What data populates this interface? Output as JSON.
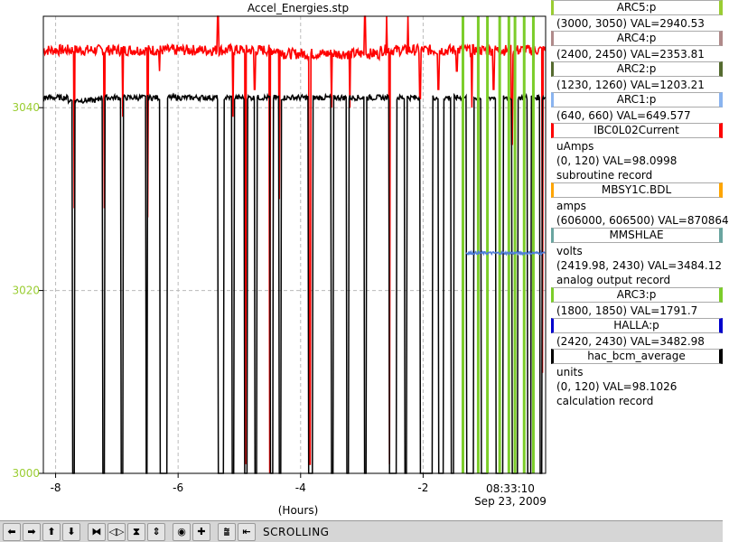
{
  "window": {
    "title": "Accel_Energies.stp"
  },
  "chart_data": {
    "type": "line",
    "xlabel": "(Hours)",
    "xlim": [
      -8.2,
      0
    ],
    "ylim": [
      3000,
      3050
    ],
    "x_ticks": [
      -8,
      -6,
      -4,
      -2
    ],
    "x_tick_labels": [
      "-8",
      "-6",
      "-4",
      "-2"
    ],
    "y_ticks": [
      3000,
      3020,
      3040
    ],
    "y_tick_labels": [
      "3000",
      "3020",
      "3040"
    ],
    "y_tick_color": "#9acd32",
    "grid": true,
    "end_time": "08:33:10",
    "end_date": "Sep 23, 2009",
    "series": [
      {
        "color": "#ff0000",
        "baseline": 3046.3,
        "noise": 0.6,
        "dips": [
          {
            "x": -7.7,
            "y": 3029
          },
          {
            "x": -7.2,
            "y": 3029
          },
          {
            "x": -6.9,
            "y": 3039
          },
          {
            "x": -6.5,
            "y": 3028
          },
          {
            "x": -6.3,
            "y": 3044
          },
          {
            "x": -6.05,
            "y": 3046
          },
          {
            "x": -5.35,
            "y": 3000
          },
          {
            "x": -5.1,
            "y": 3039
          },
          {
            "x": -4.9,
            "y": 3001
          },
          {
            "x": -4.75,
            "y": 3042
          },
          {
            "x": -4.5,
            "y": 3000
          },
          {
            "x": -4.35,
            "y": 3030
          },
          {
            "x": -3.85,
            "y": 3001
          },
          {
            "x": -3.5,
            "y": 3040
          },
          {
            "x": -3.2,
            "y": 3040
          },
          {
            "x": -2.95,
            "y": 3043
          },
          {
            "x": -2.55,
            "y": 3001
          },
          {
            "x": -2.25,
            "y": 3044
          },
          {
            "x": -2.05,
            "y": 3041
          },
          {
            "x": -1.75,
            "y": 3042
          },
          {
            "x": -1.45,
            "y": 3044
          },
          {
            "x": -1.2,
            "y": 3040
          },
          {
            "x": -0.85,
            "y": 3042
          },
          {
            "x": -0.55,
            "y": 3036
          },
          {
            "x": -0.2,
            "y": 3044
          },
          {
            "x": -0.05,
            "y": 3011
          }
        ],
        "spikes": [
          -5.35,
          -2.95,
          -2.6,
          -2.25
        ]
      },
      {
        "color": "#000000",
        "baseline": 3041.1,
        "noise": 0.3,
        "drops": [
          {
            "x": -7.73,
            "w": 0.04
          },
          {
            "x": -7.23,
            "w": 0.03
          },
          {
            "x": -6.93,
            "w": 0.03
          },
          {
            "x": -6.53,
            "w": 0.03
          },
          {
            "x": -6.3,
            "w": 0.12
          },
          {
            "x": -5.35,
            "w": 0.1
          },
          {
            "x": -5.12,
            "w": 0.03
          },
          {
            "x": -4.92,
            "w": 0.05
          },
          {
            "x": -4.75,
            "w": 0.03
          },
          {
            "x": -4.5,
            "w": 0.05
          },
          {
            "x": -4.35,
            "w": 0.03
          },
          {
            "x": -3.87,
            "w": 0.07
          },
          {
            "x": -3.5,
            "w": 0.03
          },
          {
            "x": -3.25,
            "w": 0.03
          },
          {
            "x": -2.96,
            "w": 0.03
          },
          {
            "x": -2.55,
            "w": 0.12
          },
          {
            "x": -2.3,
            "w": 0.03
          },
          {
            "x": -2.05,
            "w": 0.2
          },
          {
            "x": -1.75,
            "w": 0.08
          },
          {
            "x": -1.55,
            "w": 0.05
          },
          {
            "x": -1.3,
            "w": 0.12
          },
          {
            "x": -1.05,
            "w": 0.1
          },
          {
            "x": -0.82,
            "w": 0.12
          },
          {
            "x": -0.55,
            "w": 0.1
          },
          {
            "x": -0.3,
            "w": 0.06
          },
          {
            "x": -0.1,
            "w": 0.04
          }
        ]
      },
      {
        "color": "#7ccd2a",
        "vertical_lines": [
          -1.35,
          -1.1,
          -0.95,
          -0.75,
          -0.6,
          -0.5,
          -0.35,
          -0.2
        ]
      },
      {
        "color": "#4f7fd8",
        "x_start": -1.3,
        "x_end": 0,
        "baseline": 3024.1,
        "noise": 0.15
      }
    ]
  },
  "legend": {
    "entries": [
      {
        "name": "ARC5:p",
        "color": "#9acd32",
        "lines": [
          "(3000, 3050) VAL=2940.53"
        ]
      },
      {
        "name": "ARC4:p",
        "color": "#b08a8a",
        "lines": [
          "(2400, 2450) VAL=2353.81"
        ]
      },
      {
        "name": "ARC2:p",
        "color": "#556b2f",
        "lines": [
          "(1230, 1260) VAL=1203.21"
        ]
      },
      {
        "name": "ARC1:p",
        "color": "#8ab4f0",
        "lines": [
          "(640, 660) VAL=649.577"
        ]
      },
      {
        "name": "IBC0L02Current",
        "color": "#ff0000",
        "lines": [
          "uAmps",
          "(0, 120) VAL=98.0998",
          "subroutine record"
        ]
      },
      {
        "name": "MBSY1C.BDL",
        "color": "#ffa500",
        "lines": [
          "amps",
          "(606000, 606500) VAL=870864"
        ]
      },
      {
        "name": "MMSHLAE",
        "color": "#6aa5a0",
        "lines": [
          "volts",
          "(2419.98, 2430) VAL=3484.12",
          "analog output record"
        ]
      },
      {
        "name": "ARC3:p",
        "color": "#7ccd2a",
        "lines": [
          "(1800, 1850) VAL=1791.7"
        ]
      },
      {
        "name": "HALLA:p",
        "color": "#0000cc",
        "lines": [
          "(2420, 2430) VAL=3482.98"
        ]
      },
      {
        "name": "hac_bcm_average",
        "color": "#000000",
        "lines": [
          "units",
          "(0, 120) VAL=98.1026",
          "calculation record"
        ]
      }
    ]
  },
  "toolbar": {
    "buttons": [
      {
        "name": "pan-left-button",
        "icon": "arrow-left-icon",
        "glyph": "⬅"
      },
      {
        "name": "pan-right-button",
        "icon": "arrow-right-icon",
        "glyph": "➡"
      },
      {
        "name": "pan-up-button",
        "icon": "arrow-up-icon",
        "glyph": "⬆"
      },
      {
        "name": "pan-down-button",
        "icon": "arrow-down-icon",
        "glyph": "⬇"
      },
      {
        "name": "zoom-in-x-button",
        "icon": "zoom-in-x-icon",
        "glyph": "⧓"
      },
      {
        "name": "zoom-out-x-button",
        "icon": "zoom-out-x-icon",
        "glyph": "◁▷"
      },
      {
        "name": "zoom-in-y-button",
        "icon": "zoom-in-y-icon",
        "glyph": "⧗"
      },
      {
        "name": "zoom-out-y-button",
        "icon": "zoom-out-y-icon",
        "glyph": "⇕"
      },
      {
        "name": "zoom-auto-button",
        "icon": "target-icon",
        "glyph": "◉"
      },
      {
        "name": "zoom-reset-button",
        "icon": "plus-icon",
        "glyph": "✚"
      },
      {
        "name": "autoscale-button",
        "icon": "autoscale-icon",
        "glyph": "⩰"
      },
      {
        "name": "back-button",
        "icon": "back-icon",
        "glyph": "⇤"
      }
    ],
    "mode_label": "SCROLLING"
  }
}
